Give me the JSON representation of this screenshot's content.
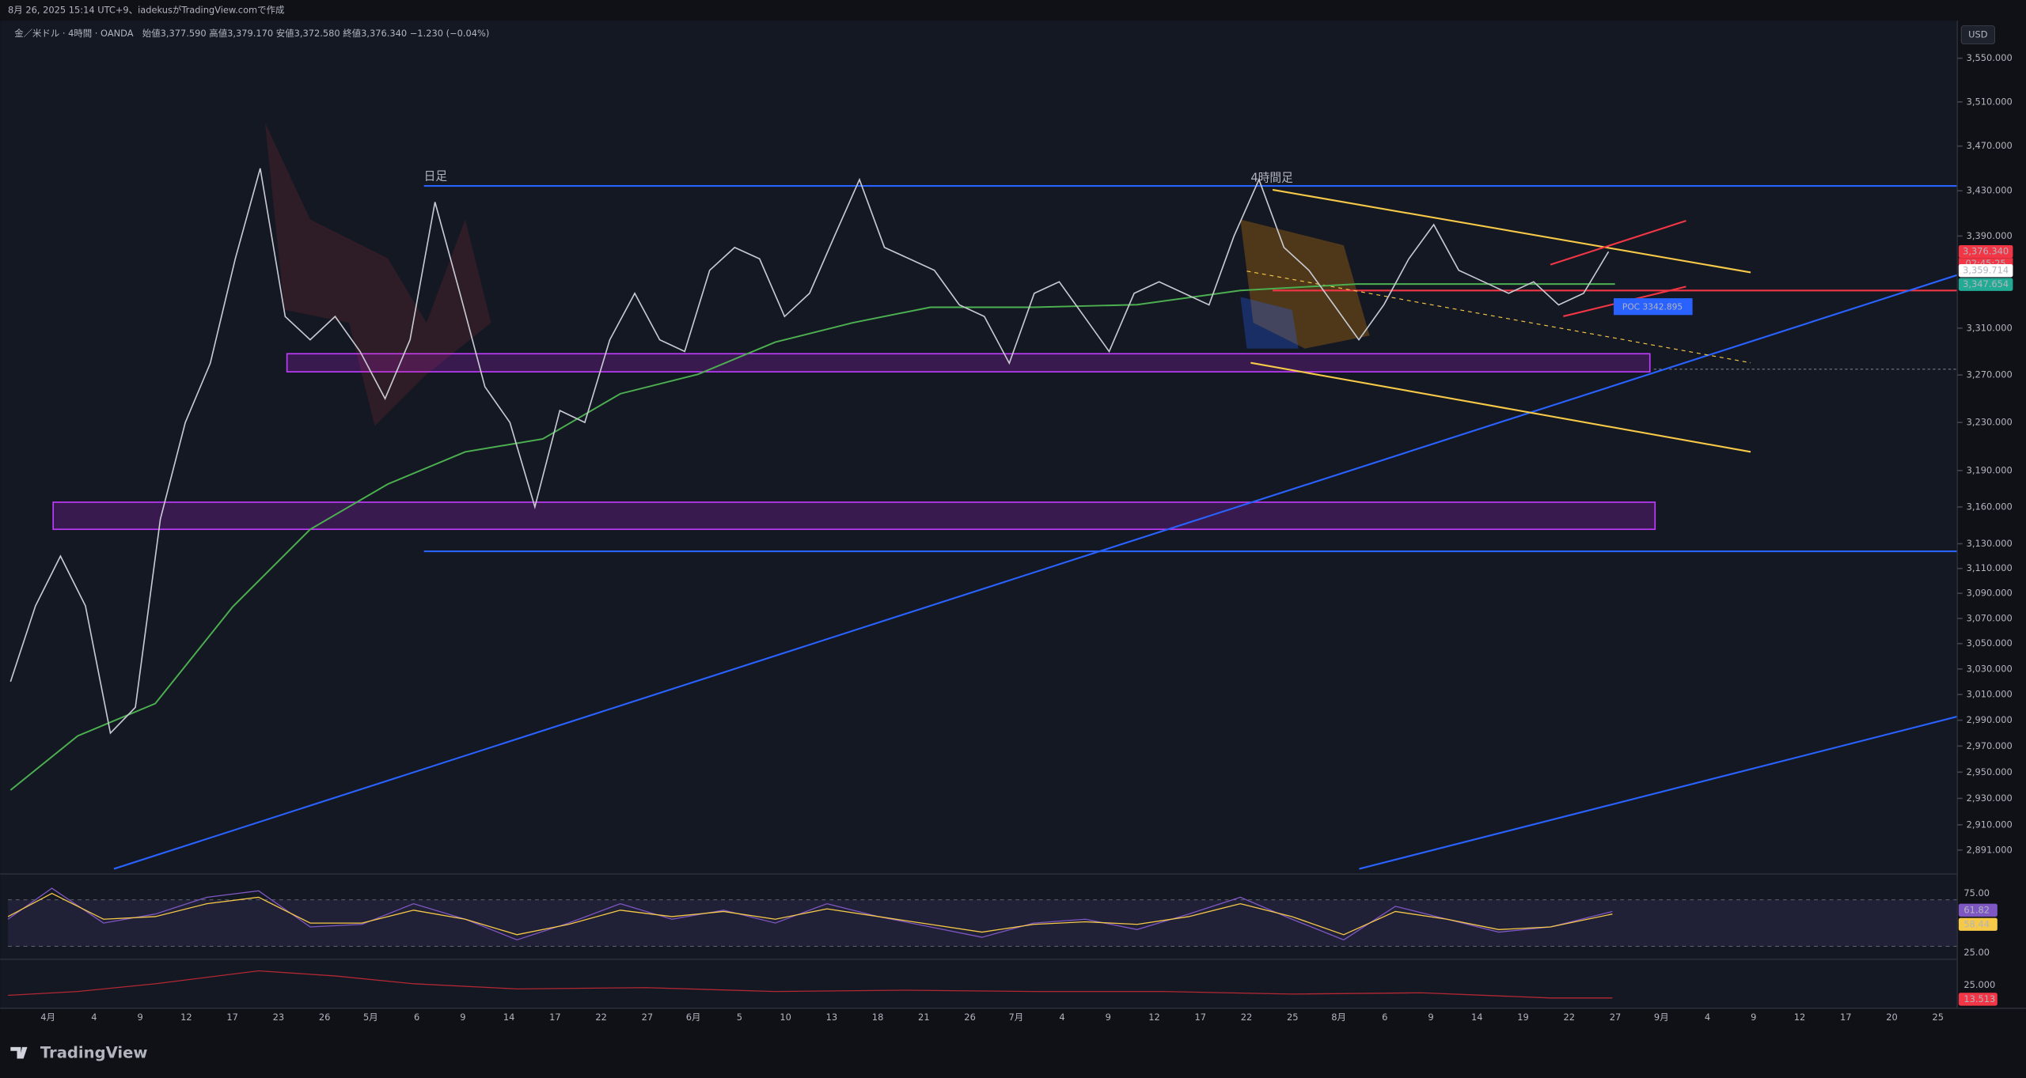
{
  "header": {
    "credit": "8月 26, 2025 15:14 UTC+9、iadekusがTradingView.comで作成",
    "symbol": "金／米ドル · 4時間 · OANDA",
    "ohlc": "始値3,377.590 高値3,379.170 安値3,372.580 終値3,376.340 −1.230 (−0.04%)",
    "currency": "USD"
  },
  "annotations": {
    "daily": "日足",
    "h4": "4時間足",
    "poc": "POC 3342.895",
    "countdown": "02:45:25"
  },
  "chart_data": {
    "type": "line",
    "log_scale": true,
    "color": "#c8cad3",
    "values": [
      3020,
      3080,
      3120,
      3080,
      2980,
      3000,
      3150,
      3230,
      3280,
      3370,
      3450,
      3320,
      3300,
      3320,
      3290,
      3250,
      3300,
      3420,
      3340,
      3260,
      3230,
      3160,
      3240,
      3230,
      3300,
      3340,
      3300,
      3290,
      3360,
      3380,
      3370,
      3320,
      3340,
      3390,
      3440,
      3380,
      3370,
      3360,
      3330,
      3320,
      3280,
      3340,
      3350,
      3320,
      3290,
      3340,
      3350,
      3340,
      3330,
      3390,
      3440,
      3380,
      3360,
      3330,
      3300,
      3330,
      3370,
      3400,
      3360,
      3350,
      3340,
      3350,
      3330,
      3340,
      3376.34
    ],
    "ylim": [
      2875,
      3562
    ],
    "yticks": [
      {
        "value": 3550,
        "label": "3,550.000"
      },
      {
        "value": 3510,
        "label": "3,510.000"
      },
      {
        "value": 3470,
        "label": "3,470.000"
      },
      {
        "value": 3430,
        "label": "3,430.000"
      },
      {
        "value": 3390,
        "label": "3,390.000"
      },
      {
        "value": 3310,
        "label": "3,310.000"
      },
      {
        "value": 3270,
        "label": "3,270.000"
      },
      {
        "value": 3230,
        "label": "3,230.000"
      },
      {
        "value": 3190,
        "label": "3,190.000"
      },
      {
        "value": 3160,
        "label": "3,160.000"
      },
      {
        "value": 3130,
        "label": "3,130.000"
      },
      {
        "value": 3110,
        "label": "3,110.000"
      },
      {
        "value": 3090,
        "label": "3,090.000"
      },
      {
        "value": 3070,
        "label": "3,070.000"
      },
      {
        "value": 3050,
        "label": "3,050.000"
      },
      {
        "value": 3030,
        "label": "3,030.000"
      },
      {
        "value": 3010,
        "label": "3,010.000"
      },
      {
        "value": 2990,
        "label": "2,990.000"
      },
      {
        "value": 2970,
        "label": "2,970.000"
      },
      {
        "value": 2950,
        "label": "2,950.000"
      },
      {
        "value": 2930,
        "label": "2,930.000"
      },
      {
        "value": 2910,
        "label": "2,910.000"
      },
      {
        "value": 2891,
        "label": "2,891.000"
      }
    ],
    "price_tags": [
      {
        "value": 3376.34,
        "label": "3,376.340",
        "color": "#f23645"
      },
      {
        "value": 3359.714,
        "label": "3,359.714",
        "color": "#ffffff"
      },
      {
        "value": 3347.654,
        "label": "3,347.654",
        "color": "#22ab94"
      }
    ],
    "x_labels": [
      "4月",
      "4",
      "9",
      "12",
      "17",
      "23",
      "26",
      "5月",
      "6",
      "9",
      "14",
      "17",
      "22",
      "27",
      "6月",
      "5",
      "10",
      "13",
      "18",
      "21",
      "26",
      "7月",
      "4",
      "9",
      "12",
      "17",
      "22",
      "25",
      "8月",
      "6",
      "9",
      "14",
      "19",
      "22",
      "27",
      "9月",
      "4",
      "9",
      "12",
      "17",
      "20",
      "25"
    ],
    "rsi_labels": [
      {
        "text": "75.00",
        "color": "#0f1117"
      },
      {
        "text": "61.82",
        "color": "#7e57c2"
      },
      {
        "text": "58.44",
        "color": "#f7c948"
      },
      {
        "text": "25.00",
        "color": "#0f1117"
      }
    ],
    "lower_labels": [
      {
        "text": "25.000",
        "color": "#0f1117"
      },
      {
        "text": "13.513",
        "color": "#f23645"
      }
    ]
  }
}
